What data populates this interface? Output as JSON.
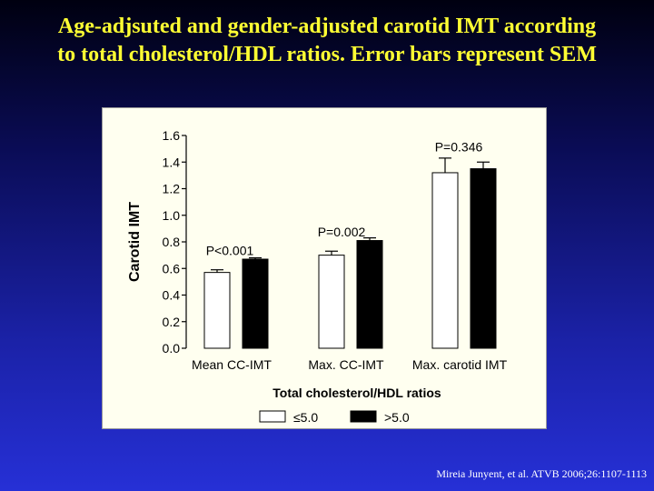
{
  "slide": {
    "title_line1": "Age-adjsuted and gender-adjusted carotid IMT according",
    "title_line2": "to total cholesterol/HDL ratios. Error bars represent SEM",
    "citation": "Mireia Junyent, et al.  ATVB 2006;26:1107-1113",
    "background_color": "#1b22a8",
    "title_color": "#ffff33"
  },
  "chart_data": {
    "type": "bar",
    "ylabel": "Carotid IMT",
    "xlabel": "Total cholesterol/HDL ratios",
    "ylim": [
      0,
      1.6
    ],
    "yticks": [
      "0.0",
      "0.2",
      "0.4",
      "0.6",
      "0.8",
      "1.0",
      "1.2",
      "1.4",
      "1.6"
    ],
    "categories": [
      "Mean CC-IMT",
      "Max. CC-IMT",
      "Max. carotid IMT"
    ],
    "series": [
      {
        "name": "≤5.0",
        "values": [
          0.57,
          0.7,
          1.32
        ],
        "errors": [
          0.02,
          0.03,
          0.11
        ],
        "color": "#ffffff"
      },
      {
        "name": ">5.0",
        "values": [
          0.67,
          0.81,
          1.35
        ],
        "errors": [
          0.01,
          0.02,
          0.05
        ],
        "color": "#000000"
      }
    ],
    "annotations": [
      "P<0.001",
      "P=0.002",
      "P=0.346"
    ],
    "grid": false,
    "legend_position": "bottom"
  }
}
